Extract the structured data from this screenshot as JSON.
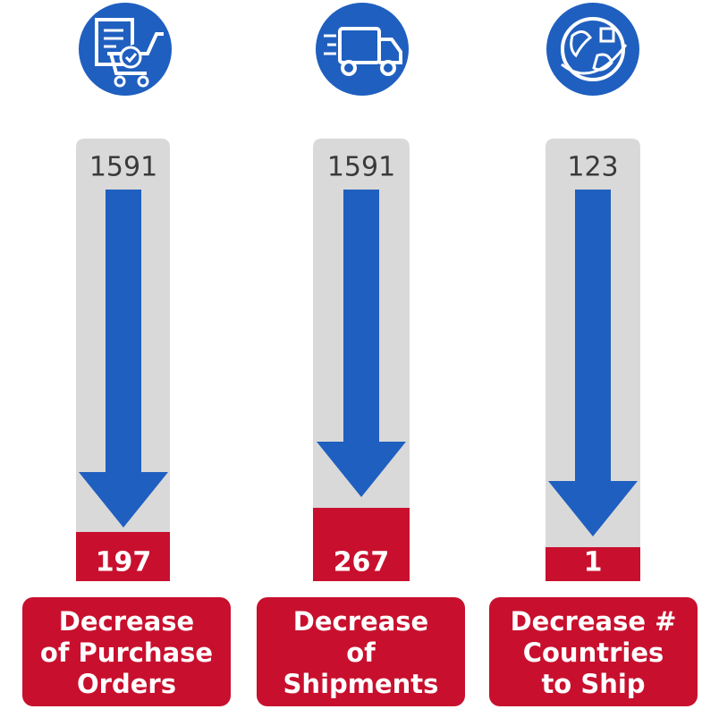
{
  "columns": [
    {
      "before": "1591",
      "after": "197",
      "label_lines": [
        "Decrease",
        "of Purchase",
        "Orders"
      ]
    },
    {
      "before": "1591",
      "after": "267",
      "label_lines": [
        "Decrease",
        "of",
        "Shipments"
      ]
    },
    {
      "before": "123",
      "after": "1",
      "label_lines": [
        "Decrease #",
        "Countries",
        "to Ship"
      ]
    }
  ]
}
